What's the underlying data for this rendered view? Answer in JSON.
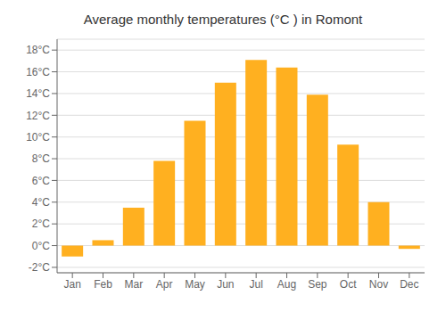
{
  "chart_data": {
    "type": "bar",
    "title": "Average monthly temperatures (°C ) in Romont",
    "categories": [
      "Jan",
      "Feb",
      "Mar",
      "Apr",
      "May",
      "Jun",
      "Jul",
      "Aug",
      "Sep",
      "Oct",
      "Nov",
      "Dec"
    ],
    "values": [
      -1.0,
      0.5,
      3.5,
      7.8,
      11.5,
      15.0,
      17.1,
      16.4,
      13.9,
      9.3,
      4.0,
      -0.3
    ],
    "color": "#FFB020",
    "ylim": [
      -2.5,
      19.0
    ],
    "yticks": [
      {
        "value": -2,
        "label": "-2°C"
      },
      {
        "value": 0,
        "label": "0°C"
      },
      {
        "value": 2,
        "label": "2°C"
      },
      {
        "value": 4,
        "label": "4°C"
      },
      {
        "value": 6,
        "label": "6°C"
      },
      {
        "value": 8,
        "label": "8°C"
      },
      {
        "value": 10,
        "label": "10°C"
      },
      {
        "value": 12,
        "label": "12°C"
      },
      {
        "value": 14,
        "label": "14°C"
      },
      {
        "value": 16,
        "label": "16°C"
      },
      {
        "value": 18,
        "label": "18°C"
      }
    ],
    "grid": true
  }
}
